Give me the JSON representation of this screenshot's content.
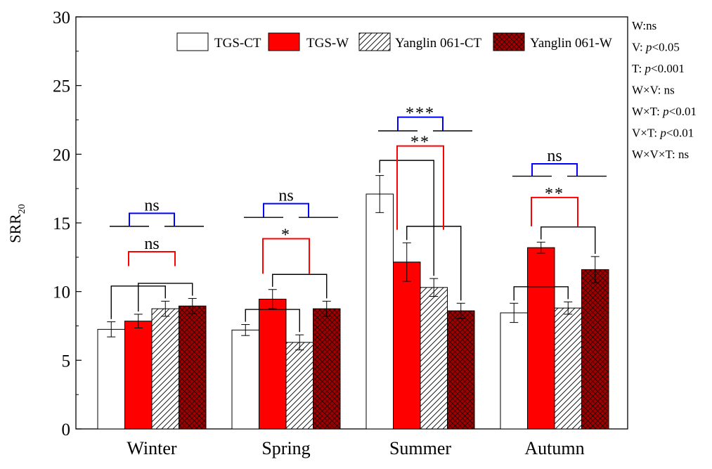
{
  "chart_data": {
    "type": "bar",
    "title": "",
    "xlabel": "",
    "ylabel": "SRR",
    "ylabel_subscript": "20",
    "ylim": [
      0,
      30
    ],
    "yticks": [
      0,
      5,
      10,
      15,
      20,
      25,
      30
    ],
    "grid": false,
    "legend_position": "top-right",
    "categories": [
      "Winter",
      "Spring",
      "Summer",
      "Autumn"
    ],
    "series": [
      {
        "name": "TGS-CT",
        "values": [
          7.25,
          7.2,
          17.1,
          8.45
        ],
        "errors": [
          0.55,
          0.4,
          1.35,
          0.7
        ],
        "fill": "#ffffff",
        "pattern": "none"
      },
      {
        "name": "TGS-W",
        "values": [
          7.85,
          9.45,
          12.15,
          13.2
        ],
        "errors": [
          0.5,
          0.7,
          1.4,
          0.4
        ],
        "fill": "#ff0000",
        "pattern": "none"
      },
      {
        "name": "Yanglin 061-CT",
        "values": [
          8.75,
          6.3,
          10.3,
          8.8
        ],
        "errors": [
          0.55,
          0.55,
          0.65,
          0.45
        ],
        "fill": "#ffffff",
        "pattern": "hatch"
      },
      {
        "name": "Yanglin 061-W",
        "values": [
          8.95,
          8.75,
          8.6,
          11.6
        ],
        "errors": [
          0.55,
          0.55,
          0.55,
          0.95
        ],
        "fill": "#a00000",
        "pattern": "crosshatch"
      }
    ],
    "significance": [
      {
        "season": "Winter",
        "factor": "V",
        "label": "ns",
        "color": "#0000ff",
        "top": 15.7,
        "ends": 14.75
      },
      {
        "season": "Winter",
        "factor": "W",
        "label": "ns",
        "color": "#ff0000",
        "top": 12.9,
        "ends": 11.85
      },
      {
        "season": "Spring",
        "factor": "V",
        "label": "ns",
        "color": "#0000ff",
        "top": 16.4,
        "ends": 15.4
      },
      {
        "season": "Spring",
        "factor": "W",
        "label": "*",
        "color": "#ff0000",
        "top": 13.85,
        "ends": 11.3
      },
      {
        "season": "Summer",
        "factor": "V",
        "label": "***",
        "color": "#0000ff",
        "top": 22.7,
        "ends": 21.7
      },
      {
        "season": "Summer",
        "factor": "W",
        "label": "**",
        "color": "#ff0000",
        "top": 20.6,
        "ends": 14.5
      },
      {
        "season": "Autumn",
        "factor": "V",
        "label": "ns",
        "color": "#0000ff",
        "top": 19.3,
        "ends": 18.4
      },
      {
        "season": "Autumn",
        "factor": "W",
        "label": "**",
        "color": "#ff0000",
        "top": 16.85,
        "ends": 14.75
      }
    ],
    "stats_annotations": [
      {
        "name": "W",
        "sep": ":",
        "value": "ns",
        "italic_p": false
      },
      {
        "name": "V",
        "sep": ": ",
        "value": "<0.05",
        "italic_p": true
      },
      {
        "name": "T",
        "sep": ": ",
        "value": "<0.001",
        "italic_p": true
      },
      {
        "name": "W×V",
        "sep": ": ",
        "value": "ns",
        "italic_p": false
      },
      {
        "name": "W×T",
        "sep": ": ",
        "value": "<0.01",
        "italic_p": true
      },
      {
        "name": "V×T",
        "sep": ": ",
        "value": "<0.01",
        "italic_p": true
      },
      {
        "name": "W×V×T",
        "sep": ": ",
        "value": "ns",
        "italic_p": false
      }
    ],
    "p_symbol": "p"
  }
}
